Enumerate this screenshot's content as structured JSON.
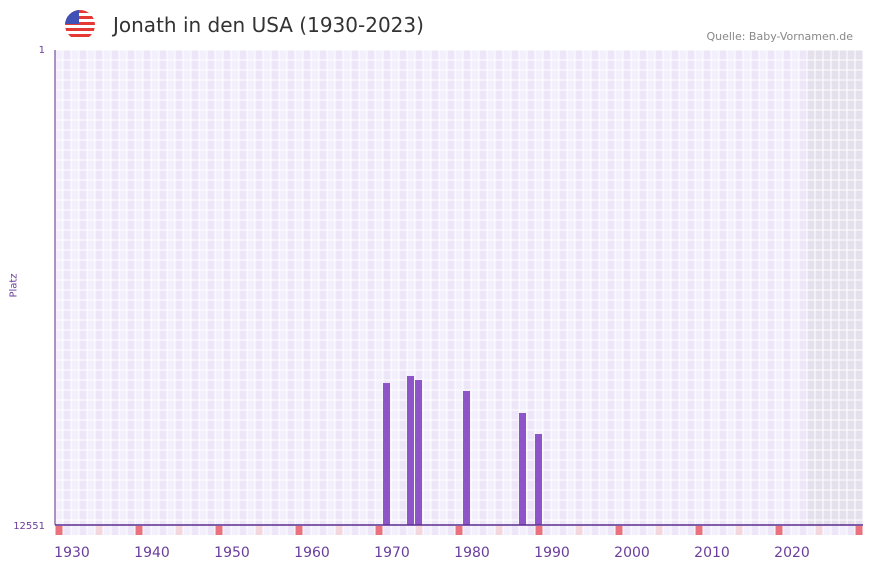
{
  "header": {
    "title": "Jonath in den USA (1930-2023)",
    "source": "Quelle: Baby-Vornamen.de",
    "flag_icon": "us-flag-icon"
  },
  "colors": {
    "bar": "#8e55c8",
    "axis": "#5b2d8e",
    "grid_a": "#f3effc",
    "grid_b": "#ece6f8",
    "future": "#e4e0ec",
    "marker_strong": "#e8737d",
    "marker_light": "#f4d6de",
    "label": "#6a3d9a"
  },
  "chart_data": {
    "type": "bar",
    "title": "Jonath in den USA (1930-2023)",
    "ylabel": "Platz",
    "xlabel": "",
    "ylim": [
      12551,
      1
    ],
    "y_ticks": [
      "1",
      "12551"
    ],
    "x_ticks": [
      "1930",
      "1940",
      "1950",
      "1960",
      "1970",
      "1980",
      "1990",
      "2000",
      "2010",
      "2020"
    ],
    "xlim": [
      1928,
      2028
    ],
    "future_from": 2022,
    "x": [
      1969,
      1972,
      1973,
      1979,
      1986,
      1988
    ],
    "values": [
      8800,
      8614,
      8720,
      9010,
      9592,
      10147
    ]
  }
}
